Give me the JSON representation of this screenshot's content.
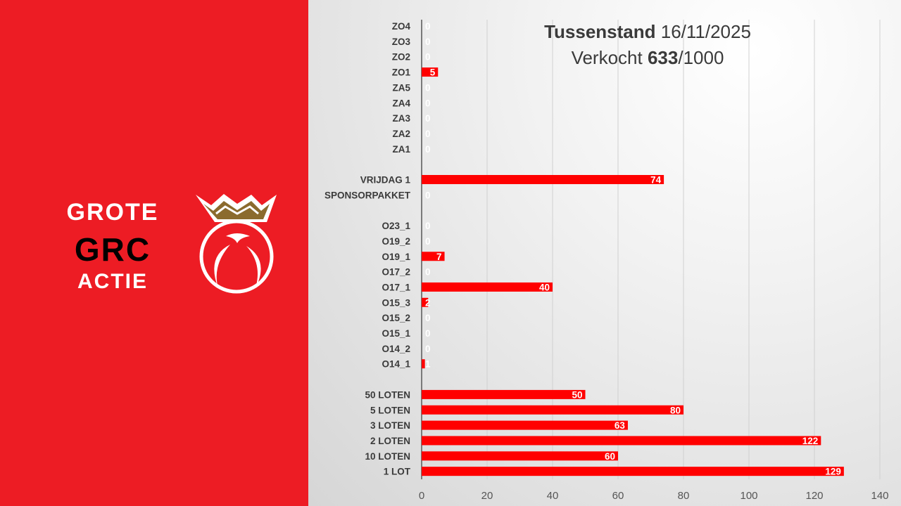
{
  "branding": {
    "line1": "GROTE",
    "line2": "GRC",
    "line3": "ACTIE",
    "logo": "grc-crown-ball-logo",
    "colors": {
      "panel": "#ED1C24",
      "crown": "#8B6B2E"
    }
  },
  "heading": {
    "title_bold": "Tussenstand",
    "title_date": "16/11/2025",
    "sold_label": "Verkocht",
    "sold_value": "633",
    "sold_total": "/1000"
  },
  "chart_data": {
    "type": "bar",
    "orientation": "horizontal",
    "bar_color": "#FF0000",
    "categories": [
      "ZO4",
      "ZO3",
      "ZO2",
      "ZO1",
      "ZA5",
      "ZA4",
      "ZA3",
      "ZA2",
      "ZA1",
      "",
      "VRIJDAG 1",
      "SPONSORPAKKET",
      "",
      "O23_1",
      "O19_2",
      "O19_1",
      "O17_2",
      "O17_1",
      "O15_3",
      "O15_2",
      "O15_1",
      "O14_2",
      "O14_1",
      "",
      "50 LOTEN",
      "5 LOTEN",
      "3 LOTEN",
      "2 LOTEN",
      "10 LOTEN",
      "1 LOT"
    ],
    "values": [
      0,
      0,
      0,
      5,
      0,
      0,
      0,
      0,
      0,
      null,
      74,
      0,
      null,
      0,
      0,
      7,
      0,
      40,
      2,
      0,
      0,
      0,
      1,
      null,
      50,
      80,
      63,
      122,
      60,
      129
    ],
    "xlim": [
      0,
      140
    ],
    "xticks": [
      "0",
      "20",
      "40",
      "60",
      "80",
      "100",
      "120",
      "140"
    ],
    "grid": true,
    "data_labels": true
  }
}
